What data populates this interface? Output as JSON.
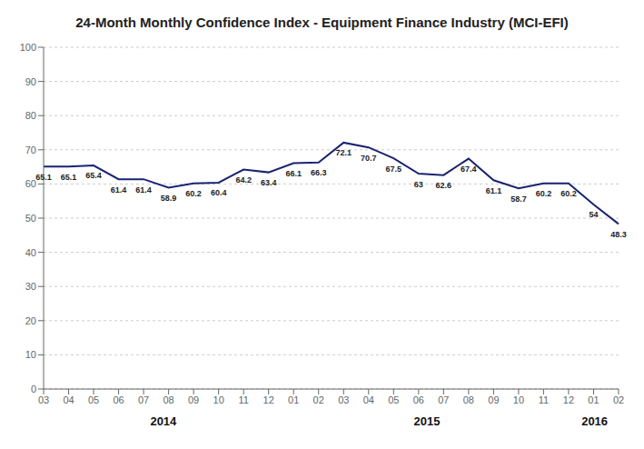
{
  "chart_data": {
    "type": "line",
    "title": "24-Month Monthly Confidence Index - Equipment Finance Industry (MCI-EFI)",
    "categories": [
      "03",
      "04",
      "05",
      "06",
      "07",
      "08",
      "09",
      "10",
      "11",
      "12",
      "01",
      "02",
      "03",
      "04",
      "05",
      "06",
      "07",
      "08",
      "09",
      "10",
      "11",
      "12",
      "01",
      "02"
    ],
    "values": [
      65.1,
      65.1,
      65.4,
      61.4,
      61.4,
      58.9,
      60.2,
      60.4,
      64.2,
      63.4,
      66.1,
      66.3,
      72.1,
      70.7,
      67.5,
      63.0,
      62.6,
      67.4,
      61.1,
      58.7,
      60.2,
      60.2,
      54.0,
      48.3
    ],
    "color": "#1a2370",
    "ylim": [
      0,
      100
    ],
    "yticks": [
      0,
      10,
      20,
      30,
      40,
      50,
      60,
      70,
      80,
      90,
      100
    ],
    "grid": true,
    "data_labels": true,
    "annotations": [
      {
        "text": "2014",
        "start": 0,
        "end": 9
      },
      {
        "text": "2015",
        "start": 10,
        "end": 21
      },
      {
        "text": "2016",
        "start": 22,
        "end": 23
      }
    ]
  }
}
